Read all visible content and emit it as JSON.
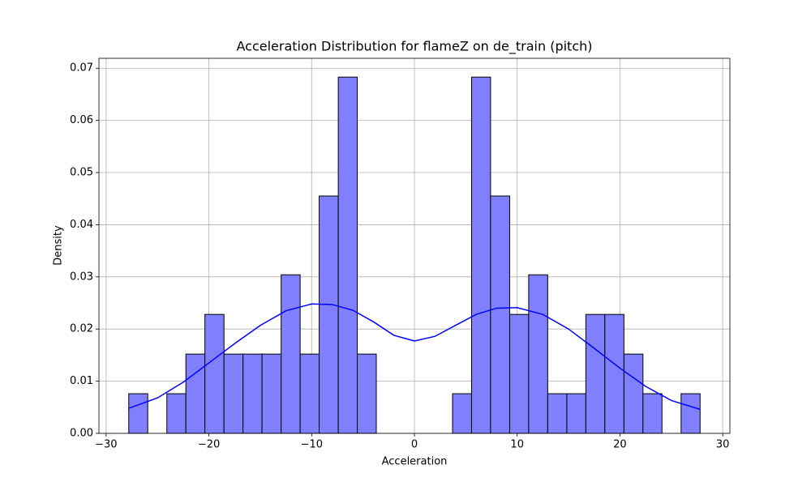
{
  "chart_data": {
    "type": "histogram",
    "title": "Acceleration Distribution for flameZ on de_train (pitch)",
    "xlabel": "Acceleration",
    "ylabel": "Density",
    "bins": [
      -27.8,
      -25.95,
      -24.09,
      -22.24,
      -20.39,
      -18.53,
      -16.68,
      -14.83,
      -12.97,
      -11.12,
      -9.27,
      -7.41,
      -5.56,
      -3.71,
      -1.85,
      0,
      1.85,
      3.71,
      5.56,
      7.41,
      9.27,
      11.12,
      12.97,
      14.83,
      16.68,
      18.53,
      20.39,
      22.24,
      24.09,
      25.95,
      27.8
    ],
    "values": [
      0.0076,
      0,
      0.0076,
      0.0152,
      0.0228,
      0.0152,
      0.0152,
      0.0152,
      0.0304,
      0.0152,
      0.0455,
      0.0683,
      0.0152,
      0,
      0,
      0,
      0,
      0.0076,
      0.0683,
      0.0455,
      0.0228,
      0.0304,
      0.0076,
      0.0076,
      0.0228,
      0.0228,
      0.0152,
      0.0076,
      0,
      0.0076
    ],
    "color": "#8080ff",
    "edgecolor": "#000000",
    "kde": {
      "color": "#0000ff",
      "x": [
        -27.8,
        -25,
        -22.5,
        -20,
        -17.5,
        -15,
        -12.5,
        -10,
        -8,
        -6,
        -4,
        -2,
        0,
        2,
        4,
        6,
        8,
        10,
        12.5,
        15,
        17.5,
        20,
        22.5,
        25,
        27.8
      ],
      "values": [
        0.0048,
        0.0068,
        0.0098,
        0.0135,
        0.0172,
        0.0207,
        0.0235,
        0.0248,
        0.0247,
        0.0236,
        0.0214,
        0.0188,
        0.0177,
        0.0186,
        0.0207,
        0.0228,
        0.024,
        0.0241,
        0.0228,
        0.02,
        0.0163,
        0.0125,
        0.009,
        0.0063,
        0.0046
      ]
    },
    "xlim": [
      -30.7,
      30.7
    ],
    "ylim": [
      0,
      0.0719
    ],
    "xticks": [
      {
        "value": -30,
        "label": "−30"
      },
      {
        "value": -20,
        "label": "−20"
      },
      {
        "value": -10,
        "label": "−10"
      },
      0,
      10,
      20,
      30
    ],
    "yticks": [
      {
        "value": 0,
        "label": "0.00"
      },
      {
        "value": 0.01,
        "label": "0.01"
      },
      {
        "value": 0.02,
        "label": "0.02"
      },
      {
        "value": 0.03,
        "label": "0.03"
      },
      {
        "value": 0.04,
        "label": "0.04"
      },
      {
        "value": 0.05,
        "label": "0.05"
      },
      {
        "value": 0.06,
        "label": "0.06"
      },
      {
        "value": 0.07,
        "label": "0.07"
      }
    ],
    "grid": true
  }
}
